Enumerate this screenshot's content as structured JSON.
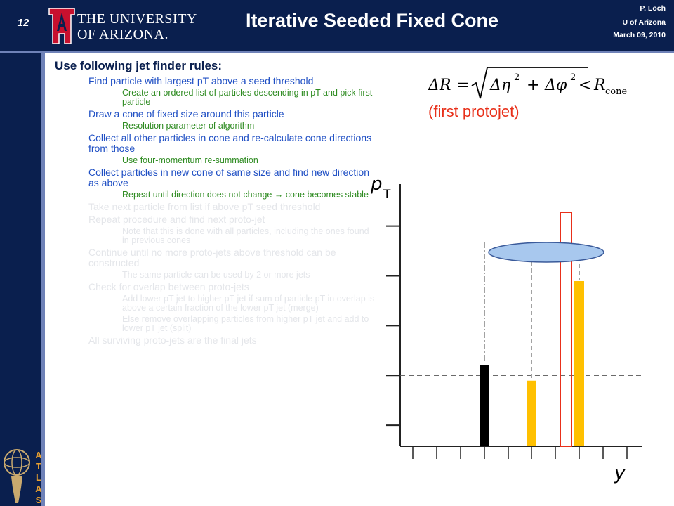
{
  "header": {
    "slide_number": "12",
    "university_line1": "THE UNIVERSITY",
    "university_line2": "OF ARIZONA.",
    "title": "Iterative Seeded Fixed Cone",
    "author": "P. Loch",
    "institution": "U of Arizona",
    "date": "March 09, 2010"
  },
  "content": {
    "heading": "Use following jet finder rules:",
    "bullets": [
      {
        "level": 1,
        "state": "active",
        "text": "Find particle with largest pT above a seed threshold"
      },
      {
        "level": 2,
        "state": "active",
        "text": "Create an ordered list of particles descending in pT and pick first particle"
      },
      {
        "level": 1,
        "state": "active",
        "text": "Draw a cone of fixed size around this particle"
      },
      {
        "level": 2,
        "state": "active",
        "text": "Resolution parameter of algorithm"
      },
      {
        "level": 1,
        "state": "active",
        "text": "Collect all other particles in cone and re-calculate cone directions from those"
      },
      {
        "level": 2,
        "state": "active",
        "text": "Use four-momentum re-summation"
      },
      {
        "level": 1,
        "state": "active",
        "text": "Collect particles in new cone of same size and find new direction as above"
      },
      {
        "level": 2,
        "state": "active",
        "text": "Repeat until direction does not change → cone becomes stable"
      },
      {
        "level": 1,
        "state": "inactive",
        "text": "Take next particle from list if above pT  seed threshold"
      },
      {
        "level": 1,
        "state": "inactive",
        "text": "Repeat procedure and find next proto-jet"
      },
      {
        "level": 2,
        "state": "inactive",
        "text": "Note that this is done with all particles, including the ones found in previous cones"
      },
      {
        "level": 1,
        "state": "inactive",
        "text": "Continue until no more proto-jets above threshold can be constructed"
      },
      {
        "level": 2,
        "state": "inactive",
        "text": "The same particle can be used by 2 or more jets"
      },
      {
        "level": 1,
        "state": "inactive",
        "text": "Check for overlap between proto-jets"
      },
      {
        "level": 2,
        "state": "inactive",
        "text": "Add lower pT jet  to higher pT jet if sum of particle pT in overlap  is above a certain fraction of the lower pT jet (merge)"
      },
      {
        "level": 2,
        "state": "inactive",
        "text": "Else remove overlapping  particles from higher  pT jet and add to lower pT jet (split)"
      },
      {
        "level": 1,
        "state": "inactive",
        "text": "All surviving proto-jets are the final jets"
      }
    ]
  },
  "formula": {
    "lhs": "ΔR",
    "eq": "=",
    "eta_term": "Δη",
    "phi_term": "Δφ",
    "power": "2",
    "plus": "+",
    "lt": "<",
    "rhs": "R",
    "rhs_sub": "cone"
  },
  "protojet_label": "(first protojet)",
  "diagram": {
    "y_label": "p",
    "y_label_sub": "T",
    "x_label": "y",
    "seed_threshold_level": 0.27,
    "bars": [
      {
        "particle": "black",
        "value": 0.31,
        "color": "#000000"
      },
      {
        "particle": "yellow-1",
        "value": 0.25,
        "color": "#ffc000"
      },
      {
        "particle": "yellow-2",
        "value": 0.63,
        "color": "#ffc000"
      }
    ],
    "cone": {
      "color": "#e8301a",
      "fill": "#a8c8ee",
      "edge": "#3a5a9a"
    },
    "colors": {
      "axis": "#222222",
      "dashed": "#555555"
    }
  }
}
